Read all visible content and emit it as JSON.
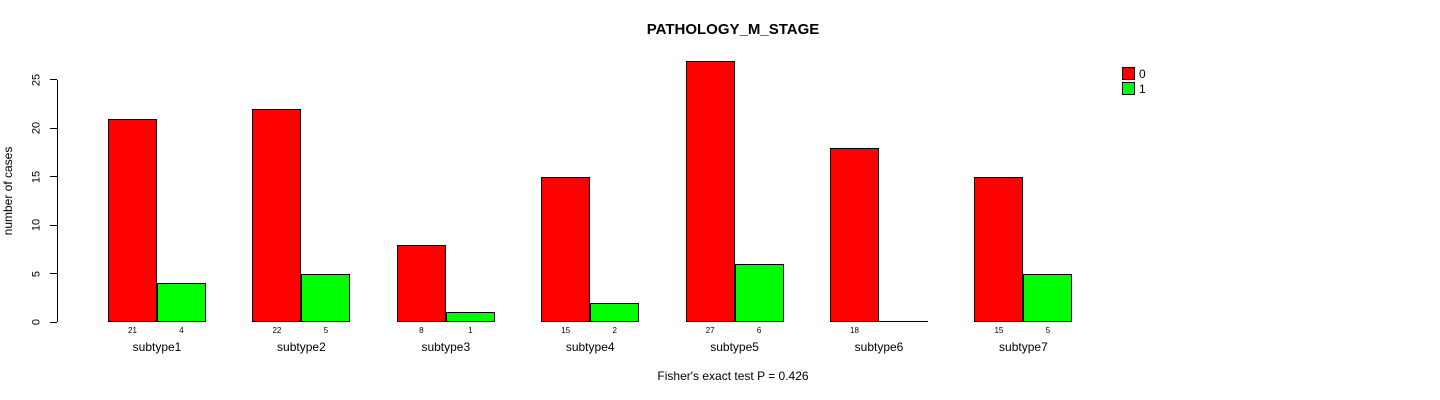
{
  "chart_data": {
    "type": "bar",
    "title": "PATHOLOGY_M_STAGE",
    "ylabel": "number of cases",
    "xlabel": "",
    "categories": [
      "subtype1",
      "subtype2",
      "subtype3",
      "subtype4",
      "subtype5",
      "subtype6",
      "subtype7"
    ],
    "series": [
      {
        "name": "0",
        "color": "#FF0000",
        "values": [
          21,
          22,
          8,
          15,
          27,
          18,
          15
        ]
      },
      {
        "name": "1",
        "color": "#00FF00",
        "values": [
          4,
          5,
          1,
          2,
          6,
          0,
          5
        ]
      }
    ],
    "bar_value_labels": [
      [
        "21",
        "4"
      ],
      [
        "22",
        "5"
      ],
      [
        "8",
        "1"
      ],
      [
        "15",
        "2"
      ],
      [
        "27",
        "6"
      ],
      [
        "18",
        ""
      ],
      [
        "15",
        "5"
      ]
    ],
    "yticks": [
      "0",
      "5",
      "10",
      "15",
      "20",
      "25"
    ],
    "ylim": [
      0,
      27
    ],
    "grid": false,
    "legend": {
      "position": "top-right",
      "entries": [
        {
          "label": "0",
          "color": "#FF0000"
        },
        {
          "label": "1",
          "color": "#00FF00"
        }
      ]
    },
    "annotation": "Fisher's exact test P = 0.426"
  },
  "colors": {
    "series0": "#FF0000",
    "series1": "#00FF00",
    "axis": "#000000",
    "background": "#FFFFFF"
  }
}
